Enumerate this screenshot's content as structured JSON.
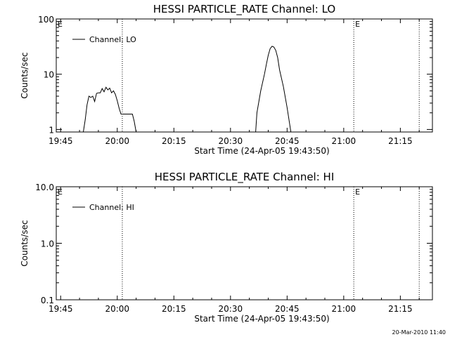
{
  "footer": {
    "timestamp": "20-Mar-2010 11:40"
  },
  "chart_data": [
    {
      "type": "line",
      "title": "HESSI PARTICLE_RATE Channel: LO",
      "xlabel": "Start Time (24-Apr-05 19:43:50)",
      "ylabel": "Counts/sec",
      "yscale": "log",
      "ylim": [
        0.9,
        100
      ],
      "xlim": [
        "19:43:50",
        "21:23:30"
      ],
      "x_ticks": [
        "19:45",
        "20:00",
        "20:15",
        "20:30",
        "20:45",
        "21:00",
        "21:15"
      ],
      "y_ticks": [
        "1",
        "10",
        "100"
      ],
      "legend": {
        "position": "top-left",
        "entries": [
          "Channel: LO"
        ]
      },
      "markers": [
        {
          "time": "19:43:50",
          "label": "E"
        },
        {
          "time": "21:02:40",
          "label": "E"
        }
      ],
      "dotted_lines": [
        "20:01:20",
        "21:02:40",
        "21:20:00"
      ],
      "series": [
        {
          "name": "Channel: LO",
          "x": [
            "19:51:00",
            "19:51:30",
            "19:52:00",
            "19:52:30",
            "19:53:00",
            "19:53:30",
            "19:54:00",
            "19:54:30",
            "19:55:00",
            "19:55:30",
            "19:56:00",
            "19:56:30",
            "19:57:00",
            "19:57:30",
            "19:58:00",
            "19:58:30",
            "19:59:00",
            "19:59:30",
            "20:00:00",
            "20:00:30",
            "20:01:00",
            "20:02:00",
            "20:03:00",
            "20:03:30",
            "20:04:00",
            "20:04:30",
            "20:05:00"
          ],
          "y": [
            0.9,
            1.5,
            2.8,
            4.0,
            3.8,
            4.0,
            3.2,
            4.5,
            4.6,
            4.6,
            5.5,
            4.8,
            5.8,
            5.2,
            5.6,
            4.6,
            5.0,
            4.3,
            3.3,
            2.4,
            1.9,
            1.9,
            1.9,
            1.9,
            1.9,
            1.4,
            0.9
          ]
        },
        {
          "name": "Channel: LO",
          "x": [
            "20:36:40",
            "20:37:00",
            "20:38:00",
            "20:39:00",
            "20:39:30",
            "20:40:00",
            "20:40:30",
            "20:41:00",
            "20:41:30",
            "20:42:00",
            "20:42:30",
            "20:43:00",
            "20:44:00",
            "20:45:00",
            "20:46:00"
          ],
          "y": [
            0.9,
            2.0,
            5.0,
            10.0,
            15.0,
            22.0,
            29.0,
            32.0,
            31.0,
            27.0,
            20.0,
            12.0,
            6.0,
            2.5,
            0.9
          ]
        }
      ]
    },
    {
      "type": "line",
      "title": "HESSI PARTICLE_RATE Channel: HI",
      "xlabel": "Start Time (24-Apr-05 19:43:50)",
      "ylabel": "Counts/sec",
      "yscale": "log",
      "ylim": [
        0.1,
        10
      ],
      "xlim": [
        "19:43:50",
        "21:23:30"
      ],
      "x_ticks": [
        "19:45",
        "20:00",
        "20:15",
        "20:30",
        "20:45",
        "21:00",
        "21:15"
      ],
      "y_ticks": [
        "0.1",
        "1.0",
        "10.0"
      ],
      "legend": {
        "position": "top-left",
        "entries": [
          "Channel: HI"
        ]
      },
      "markers": [
        {
          "time": "19:43:50",
          "label": "E"
        },
        {
          "time": "21:02:40",
          "label": "E"
        }
      ],
      "dotted_lines": [
        "20:01:20",
        "21:02:40",
        "21:20:00"
      ],
      "series": [
        {
          "name": "Channel: HI",
          "x": [],
          "y": []
        }
      ]
    }
  ]
}
